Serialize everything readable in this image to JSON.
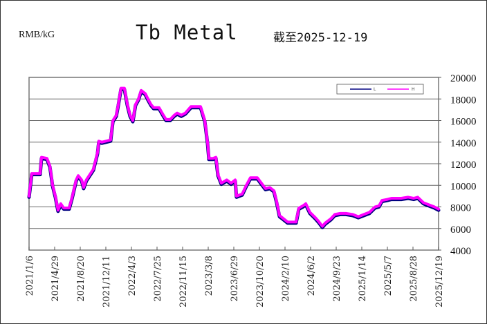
{
  "header": {
    "unit": "RMB/kG",
    "title": "Tb Metal",
    "as_of": "截至2025-12-19"
  },
  "chart_data": {
    "type": "line",
    "title": "Tb Metal",
    "ylabel": "RMB/kG",
    "ylim": [
      4000,
      20000
    ],
    "yticks": [
      "4000",
      "6000",
      "8000",
      "10000",
      "12000",
      "14000",
      "16000",
      "18000",
      "20000"
    ],
    "y_axis_side": "right",
    "grid": "horizontal",
    "legend_position": "top-right",
    "xticks": [
      "2021/1/6",
      "2021/4/29",
      "2021/8/20",
      "2021/12/11",
      "2022/4/3",
      "2022/7/25",
      "2022/11/15",
      "2023/3/8",
      "2023/6/29",
      "2023/10/20",
      "2024/2/10",
      "2024/6/2",
      "2024/9/23",
      "2025/1/14",
      "2025/5/7",
      "2025/8/28",
      "2025/12/19"
    ],
    "colors": {
      "L": "#000080",
      "H": "#ff00ff"
    },
    "series": [
      {
        "name": "L",
        "color": "#000080"
      },
      {
        "name": "H",
        "color": "#ff00ff"
      }
    ],
    "points_columns": [
      "date",
      "L",
      "H"
    ],
    "points": [
      [
        "2021-01-06",
        8900,
        9000
      ],
      [
        "2021-01-18",
        11000,
        11100
      ],
      [
        "2021-02-24",
        11000,
        11100
      ],
      [
        "2021-03-02",
        12500,
        12600
      ],
      [
        "2021-03-26",
        12400,
        12500
      ],
      [
        "2021-04-08",
        11700,
        11800
      ],
      [
        "2021-04-20",
        9900,
        10000
      ],
      [
        "2021-05-02",
        8900,
        9000
      ],
      [
        "2021-05-14",
        7600,
        7700
      ],
      [
        "2021-05-26",
        8200,
        8300
      ],
      [
        "2021-06-08",
        7800,
        7900
      ],
      [
        "2021-07-02",
        7800,
        7900
      ],
      [
        "2021-07-14",
        8700,
        8800
      ],
      [
        "2021-08-02",
        10400,
        10500
      ],
      [
        "2021-08-11",
        10800,
        10900
      ],
      [
        "2021-08-26",
        10400,
        10500
      ],
      [
        "2021-09-04",
        9700,
        9800
      ],
      [
        "2021-09-16",
        10400,
        10500
      ],
      [
        "2021-10-17",
        11400,
        11500
      ],
      [
        "2021-11-04",
        12900,
        13000
      ],
      [
        "2021-11-10",
        14000,
        14100
      ],
      [
        "2021-11-23",
        13900,
        14000
      ],
      [
        "2022-01-01",
        14100,
        14200
      ],
      [
        "2022-01-11",
        15900,
        16000
      ],
      [
        "2022-01-26",
        16400,
        16500
      ],
      [
        "2022-02-04",
        17400,
        17500
      ],
      [
        "2022-02-16",
        18900,
        19000
      ],
      [
        "2022-03-03",
        18900,
        19000
      ],
      [
        "2022-03-16",
        17400,
        17500
      ],
      [
        "2022-03-28",
        16400,
        16500
      ],
      [
        "2022-04-09",
        15900,
        16000
      ],
      [
        "2022-04-21",
        17400,
        17500
      ],
      [
        "2022-05-04",
        17900,
        18000
      ],
      [
        "2022-05-16",
        18700,
        18800
      ],
      [
        "2022-06-03",
        18400,
        18500
      ],
      [
        "2022-06-15",
        17900,
        18000
      ],
      [
        "2022-06-28",
        17400,
        17500
      ],
      [
        "2022-07-10",
        17100,
        17200
      ],
      [
        "2022-08-03",
        17100,
        17200
      ],
      [
        "2022-08-22",
        16400,
        16500
      ],
      [
        "2022-09-03",
        16000,
        16100
      ],
      [
        "2022-09-21",
        16000,
        16100
      ],
      [
        "2022-10-09",
        16400,
        16500
      ],
      [
        "2022-10-22",
        16600,
        16700
      ],
      [
        "2022-11-09",
        16400,
        16500
      ],
      [
        "2022-11-27",
        16600,
        16700
      ],
      [
        "2022-12-22",
        17200,
        17300
      ],
      [
        "2023-02-02",
        17200,
        17300
      ],
      [
        "2023-02-21",
        15900,
        16000
      ],
      [
        "2023-03-05",
        13900,
        14000
      ],
      [
        "2023-03-11",
        12400,
        12500
      ],
      [
        "2023-03-29",
        12400,
        12500
      ],
      [
        "2023-04-11",
        12500,
        12600
      ],
      [
        "2023-04-20",
        10900,
        11000
      ],
      [
        "2023-05-05",
        10100,
        10200
      ],
      [
        "2023-05-29",
        10400,
        10500
      ],
      [
        "2023-06-17",
        10100,
        10200
      ],
      [
        "2023-07-05",
        10400,
        10500
      ],
      [
        "2023-07-11",
        8900,
        9000
      ],
      [
        "2023-08-05",
        9100,
        9200
      ],
      [
        "2023-08-23",
        9900,
        10000
      ],
      [
        "2023-09-10",
        10600,
        10700
      ],
      [
        "2023-10-11",
        10600,
        10700
      ],
      [
        "2023-10-29",
        10100,
        10200
      ],
      [
        "2023-11-16",
        9600,
        9700
      ],
      [
        "2023-12-05",
        9700,
        9800
      ],
      [
        "2023-12-23",
        9400,
        9500
      ],
      [
        "2024-01-04",
        8400,
        8500
      ],
      [
        "2024-01-17",
        7100,
        7200
      ],
      [
        "2024-01-29",
        6900,
        7000
      ],
      [
        "2024-02-22",
        6500,
        6600
      ],
      [
        "2024-03-30",
        6500,
        6600
      ],
      [
        "2024-04-11",
        7800,
        7900
      ],
      [
        "2024-04-29",
        8000,
        8100
      ],
      [
        "2024-05-12",
        8200,
        8300
      ],
      [
        "2024-05-30",
        7400,
        7500
      ],
      [
        "2024-06-23",
        6900,
        7000
      ],
      [
        "2024-07-06",
        6600,
        6700
      ],
      [
        "2024-07-24",
        6100,
        6200
      ],
      [
        "2024-08-05",
        6400,
        6500
      ],
      [
        "2024-08-30",
        6800,
        6900
      ],
      [
        "2024-09-17",
        7200,
        7300
      ],
      [
        "2024-10-11",
        7300,
        7400
      ],
      [
        "2024-11-05",
        7300,
        7400
      ],
      [
        "2024-12-05",
        7200,
        7300
      ],
      [
        "2024-12-30",
        7000,
        7100
      ],
      [
        "2025-01-23",
        7200,
        7300
      ],
      [
        "2025-02-17",
        7400,
        7500
      ],
      [
        "2025-03-13",
        7900,
        8000
      ],
      [
        "2025-03-31",
        8000,
        8100
      ],
      [
        "2025-04-13",
        8500,
        8600
      ],
      [
        "2025-05-07",
        8600,
        8700
      ],
      [
        "2025-05-25",
        8700,
        8800
      ],
      [
        "2025-07-07",
        8700,
        8800
      ],
      [
        "2025-08-07",
        8800,
        8900
      ],
      [
        "2025-08-31",
        8700,
        8800
      ],
      [
        "2025-09-18",
        8800,
        8900
      ],
      [
        "2025-10-13",
        8300,
        8400
      ],
      [
        "2025-11-06",
        8100,
        8200
      ],
      [
        "2025-12-01",
        7900,
        8000
      ],
      [
        "2025-12-19",
        7700,
        7800
      ]
    ]
  }
}
